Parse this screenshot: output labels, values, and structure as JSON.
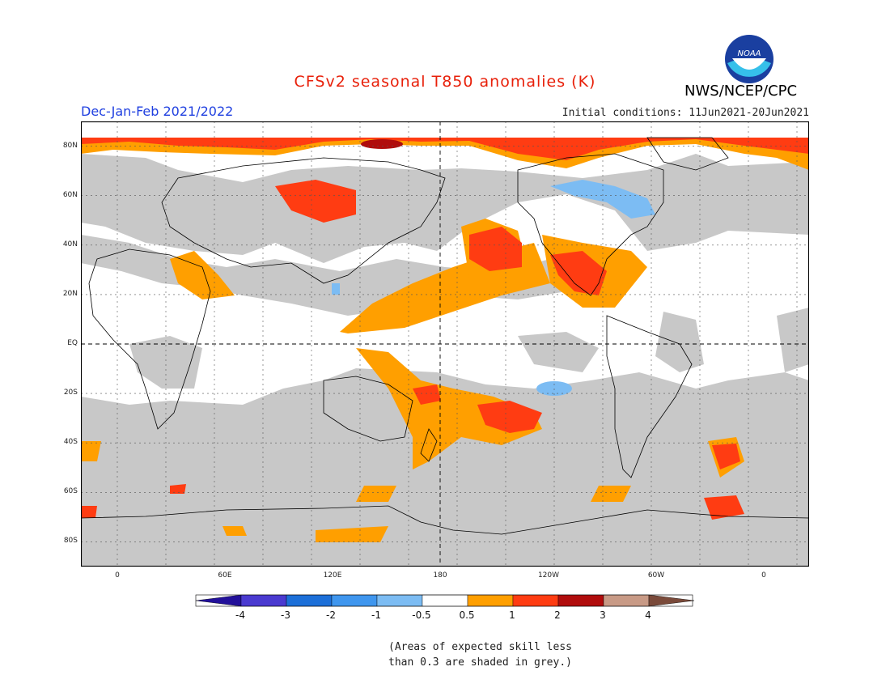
{
  "title": "CFSv2 seasonal T850 anomalies (K)",
  "agency": "NWS/NCEP/CPC",
  "logo_text": "NOAA",
  "season": "Dec-Jan-Feb 2021/2022",
  "initial_conditions": "Initial conditions: 11Jun2021-20Jun2021",
  "lat_labels": [
    "80N",
    "60N",
    "40N",
    "20N",
    "EQ",
    "20S",
    "40S",
    "60S",
    "80S"
  ],
  "lon_labels": [
    "0",
    "60E",
    "120E",
    "180",
    "120W",
    "60W",
    "0"
  ],
  "colorbar": {
    "labels": [
      "-4",
      "-3",
      "-2",
      "-1",
      "-0.5",
      "0.5",
      "1",
      "2",
      "3",
      "4"
    ],
    "colors": [
      "#22109a",
      "#4a3ad0",
      "#1c6fd8",
      "#3f96ee",
      "#7cbcf3",
      "#ffffff",
      "#ff9f00",
      "#ff3c12",
      "#b00c0c",
      "#c89a86",
      "#7a4a3a"
    ]
  },
  "note_line1": "(Areas of expected skill less",
  "note_line2": "than 0.3 are shaded in grey.)",
  "colors": {
    "skill_grey": "#c8c8c8",
    "title_red": "#e8200a",
    "season_blue": "#2040e0"
  }
}
